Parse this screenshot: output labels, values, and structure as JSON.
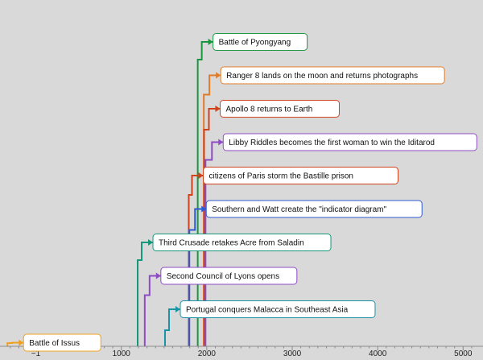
{
  "chart_data": {
    "type": "timeline",
    "axis": {
      "ticks": [
        {
          "label": "−1",
          "value": -1
        },
        {
          "label": "1000",
          "value": 1000
        },
        {
          "label": "2000",
          "value": 2000
        },
        {
          "label": "3000",
          "value": 3000
        },
        {
          "label": "4000",
          "value": 4000
        },
        {
          "label": "5000",
          "value": 5000
        }
      ],
      "range": [
        -370,
        5200
      ]
    },
    "events": [
      {
        "label": "Battle of Pyongyang",
        "year": 1894,
        "color": "#1a9641"
      },
      {
        "label": "Ranger 8 lands on the moon and returns photographs",
        "year": 1965,
        "color": "#e07b27"
      },
      {
        "label": "Apollo 8 returns to Earth",
        "year": 1968,
        "color": "#d0421b"
      },
      {
        "label": "Libby Riddles becomes the first woman to win the Iditarod",
        "year": 1985,
        "color": "#8e4bc6"
      },
      {
        "label": "citizens of Paris storm the Bastille prison",
        "year": 1789,
        "color": "#d0421b"
      },
      {
        "label": "Southern and Watt create the \"indicator diagram\"",
        "year": 1796,
        "color": "#2d5bd1"
      },
      {
        "label": "Third Crusade retakes Acre from Saladin",
        "year": 1191,
        "color": "#16977a"
      },
      {
        "label": "Second Council of Lyons opens",
        "year": 1274,
        "color": "#8e4bc6"
      },
      {
        "label": "Portugal conquers Malacca in Southeast Asia",
        "year": 1511,
        "color": "#1993a6"
      },
      {
        "label": "Battle of Issus",
        "year": -333,
        "color": "#f0a020"
      }
    ]
  }
}
